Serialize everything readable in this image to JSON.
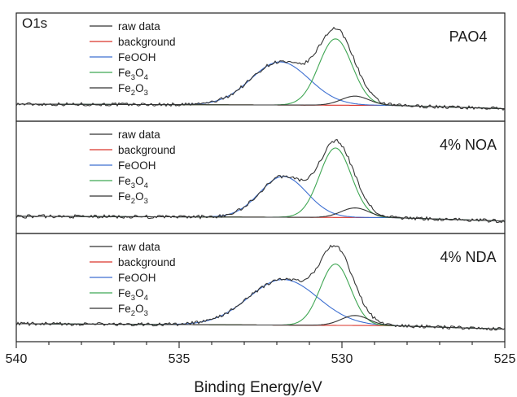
{
  "chart_data": {
    "type": "line",
    "figure_label": "O1s",
    "xlabel": "Binding Energy/eV",
    "xlim": [
      540,
      525
    ],
    "x_reversed": true,
    "x_ticks": [
      540,
      535,
      530,
      525
    ],
    "y_ticks_shown": false,
    "grid": false,
    "legend_position": "top-left",
    "legend": [
      {
        "name": "raw data",
        "sub": "",
        "color": "#333333"
      },
      {
        "name": "background",
        "sub": "",
        "color": "#d9342b"
      },
      {
        "name": "FeOOH",
        "sub": "",
        "color": "#3d6fd1"
      },
      {
        "name": "Fe",
        "sub": "3",
        "name2": "O",
        "sub2": "4",
        "color": "#3fa653"
      },
      {
        "name": "Fe",
        "sub": "2",
        "name2": "O",
        "sub2": "3",
        "color": "#333333"
      }
    ],
    "panels": [
      {
        "label": "PAO4",
        "ylim": [
          0,
          1.05
        ],
        "background": {
          "left": 0.02,
          "right": 0.0
        },
        "components": [
          {
            "name": "FeOOH",
            "center": 531.9,
            "fwhm": 2.1,
            "height": 0.52
          },
          {
            "name": "Fe3O4",
            "center": 530.2,
            "fwhm": 1.2,
            "height": 0.8
          },
          {
            "name": "Fe2O3",
            "center": 529.6,
            "fwhm": 1.0,
            "height": 0.11
          }
        ],
        "noise": 0.02
      },
      {
        "label": "4% NOA",
        "ylim": [
          0,
          1.05
        ],
        "background": {
          "left": 0.02,
          "right": 0.0
        },
        "components": [
          {
            "name": "FeOOH",
            "center": 531.8,
            "fwhm": 1.7,
            "height": 0.47
          },
          {
            "name": "Fe3O4",
            "center": 530.2,
            "fwhm": 1.15,
            "height": 0.8
          },
          {
            "name": "Fe2O3",
            "center": 529.6,
            "fwhm": 1.0,
            "height": 0.11
          }
        ],
        "noise": 0.02
      },
      {
        "label": "4% NDA",
        "ylim": [
          0,
          1.05
        ],
        "background": {
          "left": 0.03,
          "right": 0.0
        },
        "components": [
          {
            "name": "FeOOH",
            "center": 531.8,
            "fwhm": 2.5,
            "height": 0.55
          },
          {
            "name": "Fe3O4",
            "center": 530.2,
            "fwhm": 1.1,
            "height": 0.74
          },
          {
            "name": "Fe2O3",
            "center": 529.6,
            "fwhm": 1.0,
            "height": 0.12
          }
        ],
        "noise": 0.02
      }
    ]
  }
}
